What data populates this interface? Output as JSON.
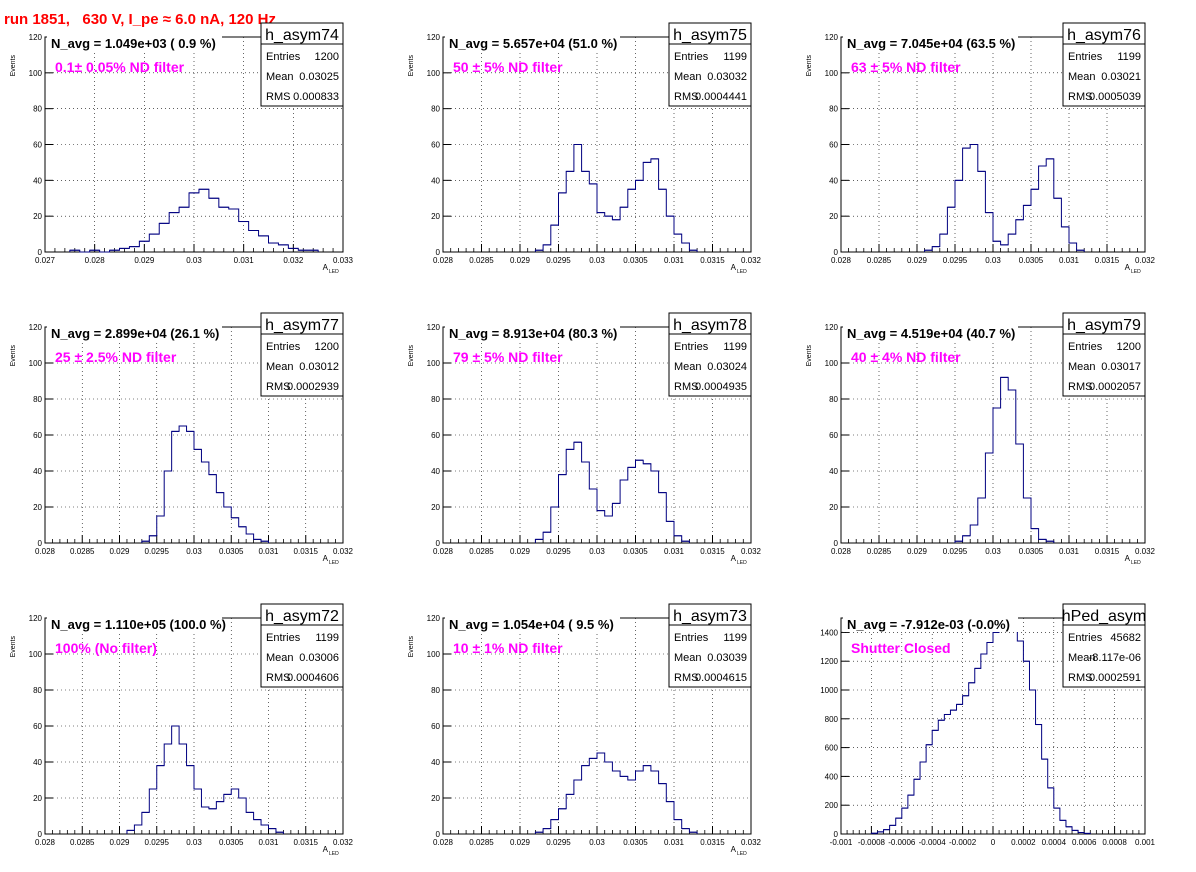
{
  "header": {
    "title": "run 1851,   630 V, I_pe ≈ 6.0 nA, 120 Hz",
    "title_color": "#ff0000"
  },
  "style": {
    "hist_color": "#000080",
    "annotation_color": "#ff00ff",
    "grid": "dotted"
  },
  "chart_data": [
    {
      "type": "histogram",
      "name": "h_asym74",
      "title": "N_avg = 1.049e+03 ( 0.9 %)",
      "annotation": "0.1± 0.05% ND filter",
      "stats": {
        "Entries": "1200",
        "Mean": "0.03025",
        "RMS": "0.000833"
      },
      "xlim": [
        0.027,
        0.033
      ],
      "xticks": [
        "0.027",
        "0.028",
        "0.029",
        "0.03",
        "0.031",
        "0.032",
        "0.033"
      ],
      "ylim": [
        0,
        120
      ],
      "yticks": [
        "0",
        "20",
        "40",
        "60",
        "80",
        "100",
        "120"
      ],
      "ylabel": "Events",
      "xlabel": "A",
      "xlabel_sub": "LED",
      "bins": [
        [
          0.0276,
          1
        ],
        [
          0.0278,
          0
        ],
        [
          0.028,
          1
        ],
        [
          0.0282,
          0
        ],
        [
          0.0284,
          1
        ],
        [
          0.0286,
          2
        ],
        [
          0.0288,
          3
        ],
        [
          0.029,
          6
        ],
        [
          0.0292,
          10
        ],
        [
          0.0294,
          16
        ],
        [
          0.0296,
          22
        ],
        [
          0.0298,
          25
        ],
        [
          0.03,
          33
        ],
        [
          0.0302,
          35
        ],
        [
          0.0304,
          30
        ],
        [
          0.0306,
          25
        ],
        [
          0.0308,
          24
        ],
        [
          0.031,
          17
        ],
        [
          0.0312,
          12
        ],
        [
          0.0314,
          9
        ],
        [
          0.0316,
          5
        ],
        [
          0.0318,
          4
        ],
        [
          0.032,
          2
        ],
        [
          0.0322,
          1
        ],
        [
          0.0324,
          1
        ]
      ]
    },
    {
      "type": "histogram",
      "name": "h_asym75",
      "title": "N_avg = 5.657e+04 (51.0 %)",
      "annotation": "50 ± 5% ND filter",
      "stats": {
        "Entries": "1199",
        "Mean": "0.03032",
        "RMS": "0.0004441"
      },
      "xlim": [
        0.028,
        0.032
      ],
      "xticks": [
        "0.028",
        "0.0285",
        "0.029",
        "0.0295",
        "0.03",
        "0.0305",
        "0.031",
        "0.0315",
        "0.032"
      ],
      "ylim": [
        0,
        120
      ],
      "yticks": [
        "0",
        "20",
        "40",
        "60",
        "80",
        "100",
        "120"
      ],
      "ylabel": "Events",
      "xlabel": "A",
      "xlabel_sub": "LED",
      "bins": [
        [
          0.02925,
          1
        ],
        [
          0.02935,
          4
        ],
        [
          0.02945,
          15
        ],
        [
          0.02955,
          33
        ],
        [
          0.02965,
          45
        ],
        [
          0.02975,
          60
        ],
        [
          0.02985,
          45
        ],
        [
          0.02995,
          38
        ],
        [
          0.03005,
          22
        ],
        [
          0.03015,
          20
        ],
        [
          0.03025,
          18
        ],
        [
          0.03035,
          25
        ],
        [
          0.03045,
          35
        ],
        [
          0.03055,
          40
        ],
        [
          0.03065,
          50
        ],
        [
          0.03075,
          52
        ],
        [
          0.03085,
          35
        ],
        [
          0.03095,
          20
        ],
        [
          0.03105,
          10
        ],
        [
          0.03115,
          5
        ],
        [
          0.03125,
          1
        ]
      ]
    },
    {
      "type": "histogram",
      "name": "h_asym76",
      "title": "N_avg = 7.045e+04 (63.5 %)",
      "annotation": "63 ± 5% ND filter",
      "stats": {
        "Entries": "1199",
        "Mean": "0.03021",
        "RMS": "0.0005039"
      },
      "xlim": [
        0.028,
        0.032
      ],
      "xticks": [
        "0.028",
        "0.0285",
        "0.029",
        "0.0295",
        "0.03",
        "0.0305",
        "0.031",
        "0.0315",
        "0.032"
      ],
      "ylim": [
        0,
        120
      ],
      "yticks": [
        "0",
        "20",
        "40",
        "60",
        "80",
        "100",
        "120"
      ],
      "ylabel": "Events",
      "xlabel": "A",
      "xlabel_sub": "LED",
      "bins": [
        [
          0.02915,
          1
        ],
        [
          0.02925,
          3
        ],
        [
          0.02935,
          10
        ],
        [
          0.02945,
          25
        ],
        [
          0.02955,
          40
        ],
        [
          0.02965,
          58
        ],
        [
          0.02975,
          60
        ],
        [
          0.02985,
          45
        ],
        [
          0.02995,
          22
        ],
        [
          0.03005,
          6
        ],
        [
          0.03015,
          4
        ],
        [
          0.03025,
          10
        ],
        [
          0.03035,
          18
        ],
        [
          0.03045,
          26
        ],
        [
          0.03055,
          35
        ],
        [
          0.03065,
          48
        ],
        [
          0.03075,
          52
        ],
        [
          0.03085,
          30
        ],
        [
          0.03095,
          14
        ],
        [
          0.03105,
          5
        ],
        [
          0.03115,
          1
        ]
      ]
    },
    {
      "type": "histogram",
      "name": "h_asym77",
      "title": "N_avg = 2.899e+04 (26.1 %)",
      "annotation": "25 ± 2.5% ND filter",
      "stats": {
        "Entries": "1200",
        "Mean": "0.03012",
        "RMS": "0.0002939"
      },
      "xlim": [
        0.028,
        0.032
      ],
      "xticks": [
        "0.028",
        "0.0285",
        "0.029",
        "0.0295",
        "0.03",
        "0.0305",
        "0.031",
        "0.0315",
        "0.032"
      ],
      "ylim": [
        0,
        120
      ],
      "yticks": [
        "0",
        "20",
        "40",
        "60",
        "80",
        "100",
        "120"
      ],
      "ylabel": "Events",
      "xlabel": "A",
      "xlabel_sub": "LED",
      "bins": [
        [
          0.02935,
          1
        ],
        [
          0.02945,
          4
        ],
        [
          0.02955,
          15
        ],
        [
          0.02965,
          40
        ],
        [
          0.02975,
          62
        ],
        [
          0.02985,
          65
        ],
        [
          0.02995,
          62
        ],
        [
          0.03005,
          52
        ],
        [
          0.03015,
          45
        ],
        [
          0.03025,
          38
        ],
        [
          0.03035,
          28
        ],
        [
          0.03045,
          20
        ],
        [
          0.03055,
          14
        ],
        [
          0.03065,
          9
        ],
        [
          0.03075,
          5
        ],
        [
          0.03085,
          2
        ],
        [
          0.03095,
          1
        ]
      ]
    },
    {
      "type": "histogram",
      "name": "h_asym78",
      "title": "N_avg = 8.913e+04 (80.3 %)",
      "annotation": "79 ± 5% ND filter",
      "stats": {
        "Entries": "1199",
        "Mean": "0.03024",
        "RMS": "0.0004935"
      },
      "xlim": [
        0.028,
        0.032
      ],
      "xticks": [
        "0.028",
        "0.0285",
        "0.029",
        "0.0295",
        "0.03",
        "0.0305",
        "0.031",
        "0.0315",
        "0.032"
      ],
      "ylim": [
        0,
        120
      ],
      "yticks": [
        "0",
        "20",
        "40",
        "60",
        "80",
        "100",
        "120"
      ],
      "ylabel": "Events",
      "xlabel": "A",
      "xlabel_sub": "LED",
      "bins": [
        [
          0.02925,
          2
        ],
        [
          0.02935,
          6
        ],
        [
          0.02945,
          20
        ],
        [
          0.02955,
          38
        ],
        [
          0.02965,
          52
        ],
        [
          0.02975,
          56
        ],
        [
          0.02985,
          45
        ],
        [
          0.02995,
          30
        ],
        [
          0.03005,
          18
        ],
        [
          0.03015,
          15
        ],
        [
          0.03025,
          22
        ],
        [
          0.03035,
          35
        ],
        [
          0.03045,
          42
        ],
        [
          0.03055,
          46
        ],
        [
          0.03065,
          44
        ],
        [
          0.03075,
          40
        ],
        [
          0.03085,
          28
        ],
        [
          0.03095,
          12
        ],
        [
          0.03105,
          4
        ],
        [
          0.03115,
          1
        ]
      ]
    },
    {
      "type": "histogram",
      "name": "h_asym79",
      "title": "N_avg = 4.519e+04 (40.7 %)",
      "annotation": "40 ± 4% ND filter",
      "stats": {
        "Entries": "1200",
        "Mean": "0.03017",
        "RMS": "0.0002057"
      },
      "xlim": [
        0.028,
        0.032
      ],
      "xticks": [
        "0.028",
        "0.0285",
        "0.029",
        "0.0295",
        "0.03",
        "0.0305",
        "0.031",
        "0.0315",
        "0.032"
      ],
      "ylim": [
        0,
        120
      ],
      "yticks": [
        "0",
        "20",
        "40",
        "60",
        "80",
        "100",
        "120"
      ],
      "ylabel": "Events",
      "xlabel": "A",
      "xlabel_sub": "LED",
      "bins": [
        [
          0.02955,
          1
        ],
        [
          0.02965,
          4
        ],
        [
          0.02975,
          10
        ],
        [
          0.02985,
          25
        ],
        [
          0.02995,
          50
        ],
        [
          0.03005,
          75
        ],
        [
          0.03015,
          92
        ],
        [
          0.03025,
          85
        ],
        [
          0.03035,
          55
        ],
        [
          0.03045,
          25
        ],
        [
          0.03055,
          8
        ],
        [
          0.03065,
          2
        ],
        [
          0.03075,
          1
        ]
      ]
    },
    {
      "type": "histogram",
      "name": "h_asym72",
      "title": "N_avg = 1.110e+05 (100.0 %)",
      "annotation": "100% (No filter)",
      "stats": {
        "Entries": "1199",
        "Mean": "0.03006",
        "RMS": "0.0004606"
      },
      "xlim": [
        0.028,
        0.032
      ],
      "xticks": [
        "0.028",
        "0.0285",
        "0.029",
        "0.0295",
        "0.03",
        "0.0305",
        "0.031",
        "0.0315",
        "0.032"
      ],
      "ylim": [
        0,
        120
      ],
      "yticks": [
        "0",
        "20",
        "40",
        "60",
        "80",
        "100",
        "120"
      ],
      "ylabel": "Events",
      "xlabel": "A",
      "xlabel_sub": "LED",
      "bins": [
        [
          0.02915,
          2
        ],
        [
          0.02925,
          5
        ],
        [
          0.02935,
          12
        ],
        [
          0.02945,
          25
        ],
        [
          0.02955,
          38
        ],
        [
          0.02965,
          50
        ],
        [
          0.02975,
          60
        ],
        [
          0.02985,
          50
        ],
        [
          0.02995,
          38
        ],
        [
          0.03005,
          25
        ],
        [
          0.03015,
          15
        ],
        [
          0.03025,
          14
        ],
        [
          0.03035,
          18
        ],
        [
          0.03045,
          22
        ],
        [
          0.03055,
          25
        ],
        [
          0.03065,
          20
        ],
        [
          0.03075,
          12
        ],
        [
          0.03085,
          8
        ],
        [
          0.03095,
          5
        ],
        [
          0.03105,
          3
        ],
        [
          0.03115,
          1
        ]
      ]
    },
    {
      "type": "histogram",
      "name": "h_asym73",
      "title": "N_avg = 1.054e+04 ( 9.5 %)",
      "annotation": "10 ± 1% ND filter",
      "stats": {
        "Entries": "1199",
        "Mean": "0.03039",
        "RMS": "0.0004615"
      },
      "xlim": [
        0.028,
        0.032
      ],
      "xticks": [
        "0.028",
        "0.0285",
        "0.029",
        "0.0295",
        "0.03",
        "0.0305",
        "0.031",
        "0.0315",
        "0.032"
      ],
      "ylim": [
        0,
        120
      ],
      "yticks": [
        "0",
        "20",
        "40",
        "60",
        "80",
        "100",
        "120"
      ],
      "ylabel": "Events",
      "xlabel": "A",
      "xlabel_sub": "LED",
      "bins": [
        [
          0.02925,
          1
        ],
        [
          0.02935,
          3
        ],
        [
          0.02945,
          8
        ],
        [
          0.02955,
          14
        ],
        [
          0.02965,
          22
        ],
        [
          0.02975,
          30
        ],
        [
          0.02985,
          38
        ],
        [
          0.02995,
          42
        ],
        [
          0.03005,
          45
        ],
        [
          0.03015,
          40
        ],
        [
          0.03025,
          35
        ],
        [
          0.03035,
          32
        ],
        [
          0.03045,
          30
        ],
        [
          0.03055,
          35
        ],
        [
          0.03065,
          38
        ],
        [
          0.03075,
          35
        ],
        [
          0.03085,
          28
        ],
        [
          0.03095,
          18
        ],
        [
          0.03105,
          8
        ],
        [
          0.03115,
          3
        ],
        [
          0.03125,
          1
        ]
      ]
    },
    {
      "type": "histogram",
      "name": "hPed_asym",
      "title": "N_avg = -7.912e-03 (-0.0%)",
      "annotation": "Shutter Closed",
      "stats": {
        "Entries": "45682",
        "Mean": "-8.117e-06",
        "RMS": "0.0002591"
      },
      "xlim": [
        -0.001,
        0.001
      ],
      "xticks": [
        "-0.001",
        "-0.0008",
        "-0.0006",
        "-0.0004",
        "-0.0002",
        "0",
        "0.0002",
        "0.0004",
        "0.0006",
        "0.0008",
        "0.001"
      ],
      "ylim": [
        0,
        1500
      ],
      "yticks": [
        "0",
        "200",
        "400",
        "600",
        "800",
        "1000",
        "1200",
        "1400"
      ],
      "ylabel": "",
      "xlabel": "",
      "xlabel_sub": "",
      "bins": [
        [
          -0.00078,
          5
        ],
        [
          -0.00074,
          15
        ],
        [
          -0.0007,
          30
        ],
        [
          -0.00066,
          60
        ],
        [
          -0.00062,
          110
        ],
        [
          -0.00058,
          180
        ],
        [
          -0.00054,
          270
        ],
        [
          -0.0005,
          380
        ],
        [
          -0.00046,
          500
        ],
        [
          -0.00042,
          620
        ],
        [
          -0.00038,
          720
        ],
        [
          -0.00034,
          790
        ],
        [
          -0.0003,
          830
        ],
        [
          -0.00026,
          860
        ],
        [
          -0.00022,
          900
        ],
        [
          -0.00018,
          960
        ],
        [
          -0.00014,
          1050
        ],
        [
          -0.0001,
          1150
        ],
        [
          -6e-05,
          1250
        ],
        [
          -2e-05,
          1330
        ],
        [
          2e-05,
          1400
        ],
        [
          6e-05,
          1440
        ],
        [
          0.0001,
          1450
        ],
        [
          0.00014,
          1420
        ],
        [
          0.00018,
          1340
        ],
        [
          0.00022,
          1200
        ],
        [
          0.00026,
          1000
        ],
        [
          0.0003,
          760
        ],
        [
          0.00034,
          520
        ],
        [
          0.00038,
          320
        ],
        [
          0.00042,
          180
        ],
        [
          0.00046,
          95
        ],
        [
          0.0005,
          50
        ],
        [
          0.00054,
          25
        ],
        [
          0.00058,
          10
        ],
        [
          0.00062,
          4
        ]
      ]
    }
  ]
}
